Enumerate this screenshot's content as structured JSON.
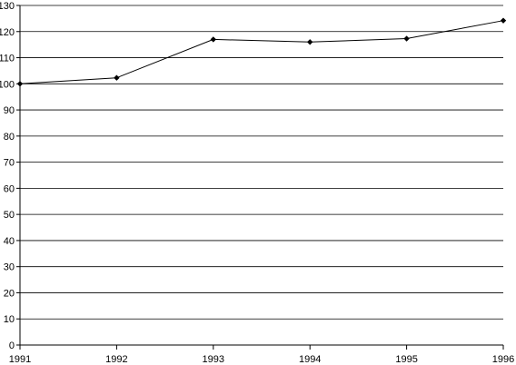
{
  "chart_data": {
    "type": "line",
    "title": "",
    "xlabel": "",
    "ylabel": "",
    "categories": [
      "1991",
      "1992",
      "1993",
      "1994",
      "1995",
      "1996"
    ],
    "series": [
      {
        "values": [
          100,
          102.3,
          117,
          116,
          117.3,
          124.2
        ]
      }
    ],
    "ylim": [
      0,
      130
    ],
    "y_ticks": [
      0,
      10,
      20,
      30,
      40,
      50,
      60,
      70,
      80,
      90,
      100,
      110,
      120,
      130
    ],
    "grid": "horizontal",
    "line_color": "#000000",
    "marker": "diamond",
    "legend": "none"
  }
}
